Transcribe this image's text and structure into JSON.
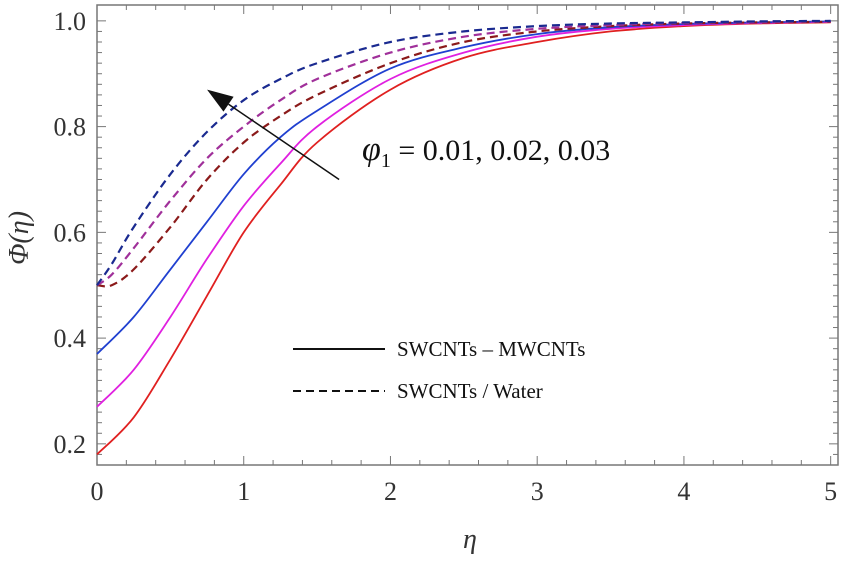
{
  "chart_data": {
    "type": "line",
    "xlabel": "η",
    "ylabel": "Φ(η)",
    "xlim": [
      0,
      5.05
    ],
    "ylim": [
      0.16,
      1.03
    ],
    "xticks": [
      "0",
      "1",
      "2",
      "3",
      "4",
      "5"
    ],
    "yticks": [
      "0.2",
      "0.4",
      "0.6",
      "0.8",
      "1.0"
    ],
    "grid": false,
    "legend_position": "center-right",
    "legend": [
      {
        "label": "SWCNTs – MWCNTs",
        "style": "solid"
      },
      {
        "label": "SWCNTs / Water",
        "style": "dashed"
      }
    ],
    "annotation": {
      "text_symbol": "φ",
      "text_subscript": "1",
      "text_values": " = 0.01, 0.02, 0.03",
      "arrow_from": [
        1.65,
        0.7
      ],
      "arrow_to": [
        0.75,
        0.87
      ]
    },
    "series": [
      {
        "style": "solid",
        "color": "#e02020",
        "x": [
          0,
          0.25,
          0.5,
          0.75,
          1,
          1.25,
          1.5,
          2,
          2.5,
          3,
          3.5,
          4,
          4.5,
          5
        ],
        "y": [
          0.18,
          0.25,
          0.36,
          0.48,
          0.6,
          0.69,
          0.77,
          0.87,
          0.93,
          0.96,
          0.98,
          0.99,
          0.995,
          0.997
        ]
      },
      {
        "style": "solid",
        "color": "#e020e0",
        "x": [
          0,
          0.25,
          0.5,
          0.75,
          1,
          1.25,
          1.5,
          2,
          2.5,
          3,
          3.5,
          4,
          4.5,
          5
        ],
        "y": [
          0.27,
          0.34,
          0.44,
          0.55,
          0.65,
          0.73,
          0.8,
          0.89,
          0.94,
          0.97,
          0.985,
          0.992,
          0.996,
          0.998
        ]
      },
      {
        "style": "solid",
        "color": "#2040d0",
        "x": [
          0,
          0.25,
          0.5,
          0.75,
          1,
          1.25,
          1.5,
          2,
          2.5,
          3,
          3.5,
          4,
          4.5,
          5
        ],
        "y": [
          0.37,
          0.44,
          0.53,
          0.62,
          0.71,
          0.78,
          0.83,
          0.91,
          0.95,
          0.975,
          0.988,
          0.994,
          0.997,
          0.999
        ]
      },
      {
        "style": "dashed",
        "color": "#8b1a1a",
        "x": [
          0,
          0.1,
          0.25,
          0.5,
          0.75,
          1,
          1.25,
          1.5,
          2,
          2.5,
          3,
          3.5,
          4,
          4.5,
          5
        ],
        "y": [
          0.5,
          0.5,
          0.53,
          0.61,
          0.7,
          0.77,
          0.82,
          0.86,
          0.92,
          0.96,
          0.98,
          0.99,
          0.995,
          0.997,
          0.998
        ]
      },
      {
        "style": "dashed",
        "color": "#a0309a",
        "x": [
          0,
          0.1,
          0.25,
          0.5,
          0.75,
          1,
          1.25,
          1.5,
          2,
          2.5,
          3,
          3.5,
          4,
          4.5,
          5
        ],
        "y": [
          0.5,
          0.52,
          0.57,
          0.66,
          0.74,
          0.8,
          0.85,
          0.89,
          0.94,
          0.97,
          0.985,
          0.992,
          0.996,
          0.998,
          0.999
        ]
      },
      {
        "style": "dashed",
        "color": "#1a2a90",
        "x": [
          0,
          0.1,
          0.25,
          0.5,
          0.75,
          1,
          1.25,
          1.5,
          2,
          2.5,
          3,
          3.5,
          4,
          4.5,
          5
        ],
        "y": [
          0.5,
          0.54,
          0.61,
          0.71,
          0.79,
          0.85,
          0.89,
          0.92,
          0.96,
          0.98,
          0.99,
          0.995,
          0.997,
          0.999,
          1.0
        ]
      }
    ]
  }
}
